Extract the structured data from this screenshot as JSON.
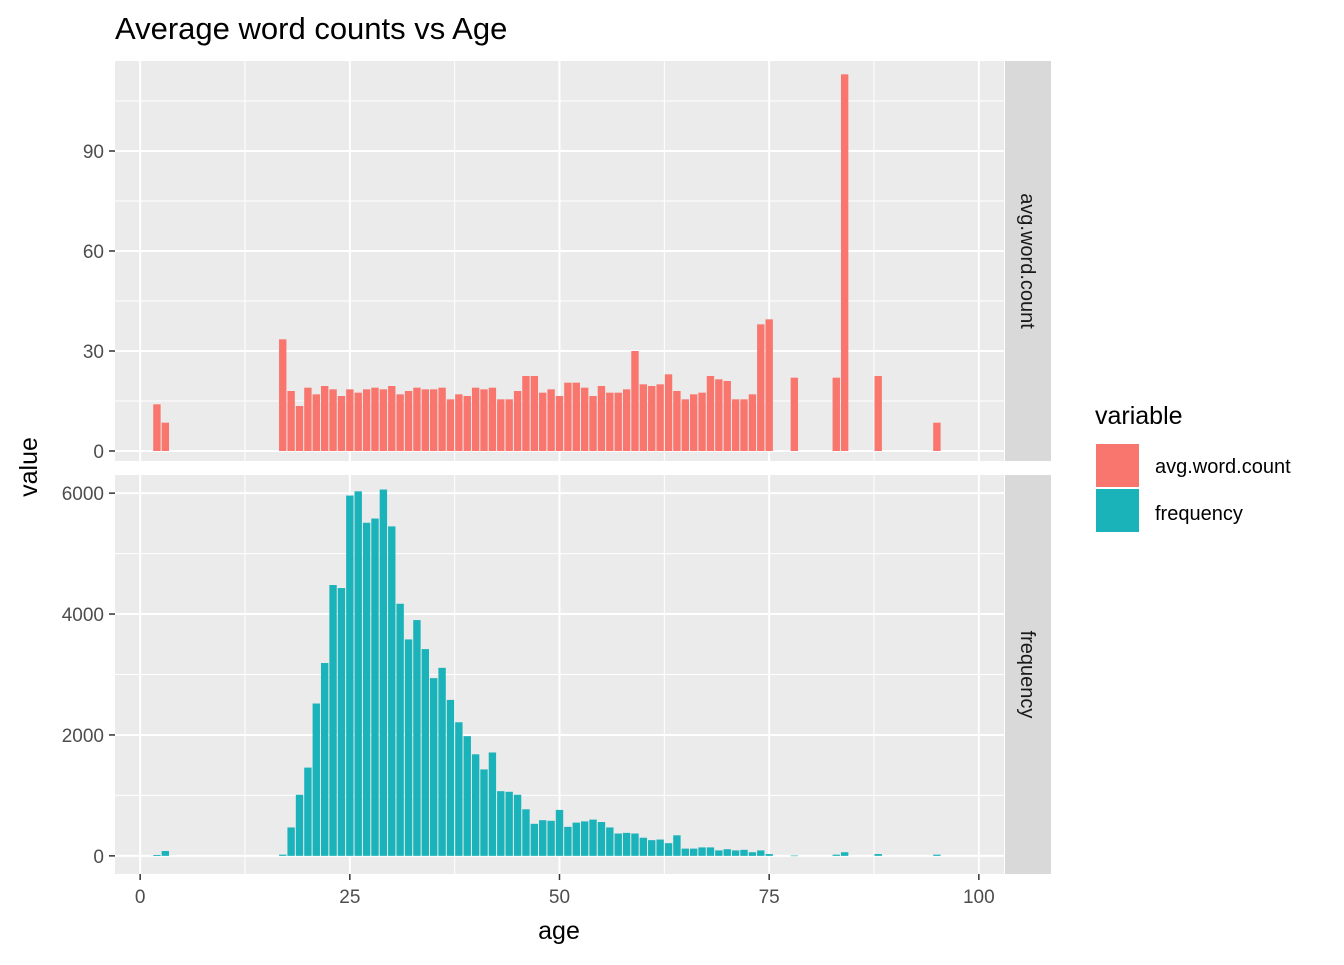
{
  "chart_data": {
    "type": "bar",
    "title": "Average word counts vs Age",
    "xlabel": "age",
    "ylabel": "value",
    "xlim": [
      -3,
      103
    ],
    "x_ticks": [
      0,
      25,
      50,
      75,
      100
    ],
    "grid": true,
    "legend": {
      "title": "variable",
      "position": "right",
      "entries": [
        {
          "label": "avg.word.count",
          "color": "#F8766D"
        },
        {
          "label": "frequency",
          "color": "#1BB3BA"
        }
      ]
    },
    "facets": [
      {
        "strip_label": "avg.word.count",
        "color": "#F8766D",
        "ylim": [
          -3,
          117
        ],
        "y_ticks": [
          0,
          30,
          60,
          90
        ],
        "x": [
          2,
          3,
          17,
          18,
          19,
          20,
          21,
          22,
          23,
          24,
          25,
          26,
          27,
          28,
          29,
          30,
          31,
          32,
          33,
          34,
          35,
          36,
          37,
          38,
          39,
          40,
          41,
          42,
          43,
          44,
          45,
          46,
          47,
          48,
          49,
          50,
          51,
          52,
          53,
          54,
          55,
          56,
          57,
          58,
          59,
          60,
          61,
          62,
          63,
          64,
          65,
          66,
          67,
          68,
          69,
          70,
          71,
          72,
          73,
          74,
          75,
          78,
          83,
          84,
          88,
          95
        ],
        "values": [
          14,
          8.5,
          33.5,
          18,
          13.5,
          19,
          17,
          19.5,
          18.5,
          16.5,
          18.5,
          17.5,
          18.5,
          19,
          18.5,
          19.5,
          17,
          18,
          19,
          18.5,
          18.5,
          19,
          15.5,
          17,
          16.5,
          19,
          18.5,
          19,
          15.5,
          15.5,
          18,
          22.5,
          22.5,
          17.5,
          18.5,
          16.5,
          20.5,
          20.5,
          19,
          16.5,
          19.5,
          17.5,
          17.5,
          18.5,
          30,
          20,
          19.5,
          20,
          23,
          18,
          15.5,
          17,
          17.5,
          22.5,
          21.5,
          21,
          15.5,
          15.5,
          17,
          38,
          39.5,
          22,
          22,
          113,
          22.5,
          8.5
        ]
      },
      {
        "strip_label": "frequency",
        "color": "#1BB3BA",
        "ylim": [
          -300,
          6300
        ],
        "y_ticks": [
          0,
          2000,
          4000,
          6000
        ],
        "x": [
          2,
          3,
          17,
          18,
          19,
          20,
          21,
          22,
          23,
          24,
          25,
          26,
          27,
          28,
          29,
          30,
          31,
          32,
          33,
          34,
          35,
          36,
          37,
          38,
          39,
          40,
          41,
          42,
          43,
          44,
          45,
          46,
          47,
          48,
          49,
          50,
          51,
          52,
          53,
          54,
          55,
          56,
          57,
          58,
          59,
          60,
          61,
          62,
          63,
          64,
          65,
          66,
          67,
          68,
          69,
          70,
          71,
          72,
          73,
          74,
          75,
          78,
          83,
          84,
          88,
          95
        ],
        "values": [
          15,
          80,
          20,
          470,
          1010,
          1460,
          2520,
          3190,
          4480,
          4430,
          5960,
          6030,
          5510,
          5580,
          6060,
          5450,
          4170,
          3580,
          3900,
          3420,
          2940,
          3110,
          2580,
          2210,
          1980,
          1680,
          1430,
          1710,
          1070,
          1060,
          1010,
          770,
          530,
          590,
          580,
          760,
          480,
          550,
          570,
          600,
          560,
          470,
          370,
          380,
          370,
          300,
          260,
          270,
          210,
          340,
          120,
          120,
          140,
          140,
          90,
          110,
          90,
          100,
          60,
          90,
          30,
          5,
          20,
          60,
          30,
          20
        ]
      }
    ]
  }
}
